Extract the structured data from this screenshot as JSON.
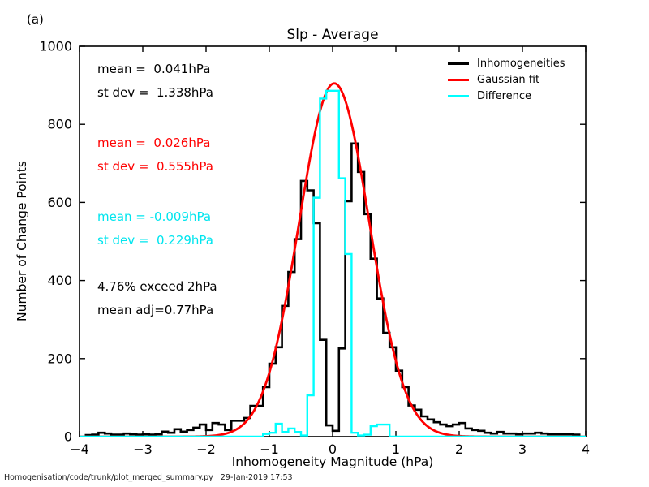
{
  "panel_label": "(a)",
  "title": "Slp - Average",
  "xlabel": "Inhomogeneity Magnitude (hPa)",
  "ylabel": "Number of Change Points",
  "footer": "Homogenisation/code/trunk/plot_merged_summary.py   29-Jan-2019 17:53",
  "annotations": {
    "black_mean": "mean =  0.041hPa",
    "black_stdev": "st dev =  1.338hPa",
    "red_mean": "mean =  0.026hPa",
    "red_stdev": "st dev =  0.555hPa",
    "cyan_mean": "mean = -0.009hPa",
    "cyan_stdev": "st dev =  0.229hPa",
    "exceed": "4.76% exceed 2hPa",
    "mean_adj": "mean adj=0.77hPa"
  },
  "legend": [
    {
      "label": "Inhomogeneities",
      "color": "#000000"
    },
    {
      "label": "Gaussian fit",
      "color": "#ff0000"
    },
    {
      "label": "Difference",
      "color": "#00ffff"
    }
  ],
  "colors": {
    "black": "#000000",
    "red": "#ff0000",
    "cyan_line": "#00ffff",
    "cyan_text": "#00e5ee",
    "axis": "#000000"
  },
  "chart_data": {
    "type": "line",
    "title": "Slp - Average",
    "xlabel": "Inhomogeneity Magnitude (hPa)",
    "ylabel": "Number of Change Points",
    "xlim": [
      -4,
      4
    ],
    "ylim": [
      0,
      1000
    ],
    "grid": false,
    "legend_position": "upper right",
    "xticks": [
      -4,
      -3,
      -2,
      -1,
      0,
      1,
      2,
      3,
      4
    ],
    "xtick_labels": [
      "−4",
      "−3",
      "−2",
      "−1",
      "0",
      "1",
      "2",
      "3",
      "4"
    ],
    "yticks": [
      0,
      200,
      400,
      600,
      800,
      1000
    ],
    "ytick_labels": [
      "0",
      "200",
      "400",
      "600",
      "800",
      "1000"
    ],
    "bin_width": 0.1,
    "bin_centers": [
      -3.85,
      -3.75,
      -3.65,
      -3.55,
      -3.45,
      -3.35,
      -3.25,
      -3.15,
      -3.05,
      -2.95,
      -2.85,
      -2.75,
      -2.65,
      -2.55,
      -2.45,
      -2.35,
      -2.25,
      -2.15,
      -2.05,
      -1.95,
      -1.85,
      -1.75,
      -1.65,
      -1.55,
      -1.45,
      -1.35,
      -1.25,
      -1.15,
      -1.05,
      -0.95,
      -0.85,
      -0.75,
      -0.65,
      -0.55,
      -0.45,
      -0.35,
      -0.25,
      -0.15,
      -0.05,
      0.05,
      0.15,
      0.25,
      0.35,
      0.45,
      0.55,
      0.65,
      0.75,
      0.85,
      0.95,
      1.05,
      1.15,
      1.25,
      1.35,
      1.45,
      1.55,
      1.65,
      1.75,
      1.85,
      1.95,
      2.05,
      2.15,
      2.25,
      2.35,
      2.45,
      2.55,
      2.65,
      2.75,
      2.85,
      2.95,
      3.05,
      3.15,
      3.25,
      3.35,
      3.45,
      3.55,
      3.65,
      3.75,
      3.85
    ],
    "series": [
      {
        "name": "Inhomogeneities",
        "kind": "step-histogram",
        "color": "#000000",
        "values": [
          4,
          5,
          10,
          8,
          5,
          5,
          8,
          6,
          5,
          6,
          5,
          6,
          13,
          10,
          19,
          13,
          17,
          23,
          31,
          17,
          35,
          31,
          17,
          41,
          41,
          48,
          79,
          79,
          127,
          187,
          229,
          335,
          422,
          506,
          655,
          631,
          547,
          248,
          29,
          15,
          226,
          603,
          751,
          678,
          570,
          456,
          354,
          266,
          229,
          169,
          127,
          80,
          69,
          52,
          44,
          37,
          31,
          27,
          31,
          35,
          21,
          17,
          15,
          10,
          8,
          12,
          8,
          8,
          6,
          8,
          8,
          10,
          8,
          6,
          6,
          6,
          6,
          5
        ],
        "stats": {
          "mean_hpa": 0.041,
          "stdev_hpa": 1.338
        }
      },
      {
        "name": "Gaussian fit",
        "kind": "gaussian-curve",
        "color": "#ff0000",
        "amplitude": 905,
        "mean": 0.026,
        "sigma": 0.555,
        "stats": {
          "mean_hpa": 0.026,
          "stdev_hpa": 0.555
        }
      },
      {
        "name": "Difference",
        "kind": "step-histogram",
        "color": "#00ffff",
        "values": [
          0,
          0,
          0,
          0,
          0,
          0,
          0,
          0,
          0,
          0,
          0,
          0,
          0,
          0,
          0,
          0,
          0,
          0,
          0,
          0,
          0,
          0,
          0,
          0,
          0,
          0,
          0,
          0,
          7,
          10,
          33,
          12,
          21,
          12,
          3,
          106,
          612,
          866,
          886,
          886,
          662,
          468,
          10,
          3,
          5,
          27,
          31,
          31,
          0,
          0,
          0,
          0,
          0,
          0,
          0,
          0,
          0,
          0,
          0,
          0,
          0,
          0,
          0,
          0,
          0,
          0,
          0,
          0,
          0,
          0,
          0,
          0,
          0,
          0,
          0,
          0,
          0,
          0
        ],
        "stats": {
          "mean_hpa": -0.009,
          "stdev_hpa": 0.229
        }
      }
    ],
    "annotations_text": [
      "mean =  0.041hPa",
      "st dev =  1.338hPa",
      "mean =  0.026hPa",
      "st dev =  0.555hPa",
      "mean = -0.009hPa",
      "st dev =  0.229hPa",
      "4.76% exceed 2hPa",
      "mean adj=0.77hPa"
    ]
  }
}
